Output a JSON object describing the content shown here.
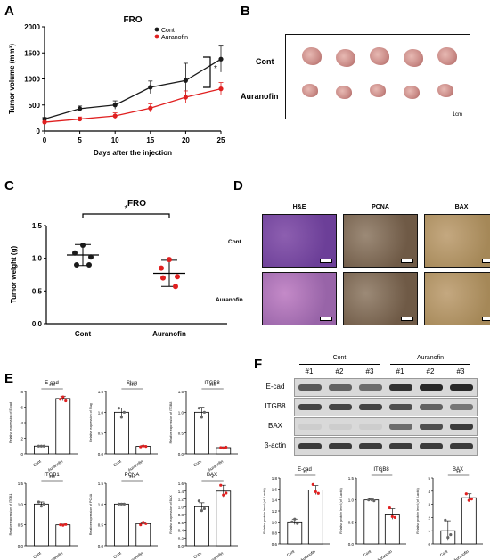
{
  "panels": [
    "A",
    "B",
    "C",
    "D",
    "E",
    "F"
  ],
  "panel_a": {
    "title": "FRO",
    "xlabel": "Days after the injection",
    "ylabel": "Tumor volume (mm³)",
    "sig": "*"
  },
  "panel_b": {
    "rows": [
      "Cont",
      "Auranofin"
    ],
    "scale": "1cm"
  },
  "panel_c": {
    "title": "FRO",
    "ylabel": "Tumor weight (g)",
    "sig": "*"
  },
  "panel_d": {
    "cols": [
      "H&E",
      "PCNA",
      "BAX"
    ],
    "rows": [
      "Cont",
      "Auranofin"
    ]
  },
  "panel_f": {
    "groups": [
      "Cont",
      "Auranofin"
    ],
    "lanes": [
      "#1",
      "#2",
      "#3",
      "#1",
      "#2",
      "#3"
    ],
    "bands": [
      "E-cad",
      "ITGB8",
      "BAX",
      "β-actin"
    ],
    "band_intensity": {
      "E-cad": [
        0.65,
        0.6,
        0.55,
        0.85,
        0.9,
        0.9
      ],
      "ITGB8": [
        0.75,
        0.75,
        0.75,
        0.7,
        0.6,
        0.5
      ],
      "BAX": [
        0.05,
        0.05,
        0.05,
        0.55,
        0.7,
        0.8
      ],
      "β-actin": [
        0.8,
        0.8,
        0.8,
        0.8,
        0.8,
        0.8
      ]
    }
  },
  "colors": {
    "cont": "#1a1a1a",
    "auranofin": "#e02020"
  },
  "chart_data": [
    {
      "id": "A",
      "type": "line",
      "title": "FRO",
      "xlabel": "Days after the injection",
      "ylabel": "Tumor volume (mm³)",
      "x": [
        0,
        5,
        10,
        15,
        20,
        25
      ],
      "xlim": [
        0,
        25
      ],
      "ylim": [
        0,
        2000
      ],
      "xticks": [
        0,
        5,
        10,
        15,
        20,
        25
      ],
      "yticks": [
        0,
        500,
        1000,
        1500,
        2000
      ],
      "series": [
        {
          "name": "Cont",
          "values": [
            230,
            430,
            500,
            840,
            970,
            1380
          ],
          "err": [
            30,
            50,
            80,
            120,
            330,
            250
          ]
        },
        {
          "name": "Auranofin",
          "values": [
            170,
            230,
            290,
            440,
            650,
            810
          ],
          "err": [
            20,
            40,
            60,
            80,
            120,
            120
          ]
        }
      ],
      "legend": "top-left"
    },
    {
      "id": "C",
      "type": "scatter",
      "title": "FRO",
      "ylabel": "Tumor weight (g)",
      "categories": [
        "Cont",
        "Auranofin"
      ],
      "ylim": [
        0,
        1.5
      ],
      "yticks": [
        0.0,
        0.5,
        1.0,
        1.5
      ],
      "points": [
        [
          1.2,
          1.08,
          1.02,
          0.9,
          0.9
        ],
        [
          0.98,
          0.85,
          0.72,
          0.7,
          0.57
        ]
      ],
      "mean": [
        1.05,
        0.77
      ],
      "sd": [
        0.16,
        0.2
      ],
      "sig": "*"
    },
    {
      "id": "E1",
      "type": "bar",
      "title": "E-cad",
      "ylabel": "Relative expression of E-cad",
      "categories": [
        "Cont",
        "Auranofin"
      ],
      "values": [
        1.0,
        7.1
      ],
      "err": [
        0,
        0.3
      ],
      "ylim": [
        0,
        8
      ],
      "yticks": [
        0,
        2,
        4,
        6,
        8
      ],
      "sig": "***",
      "points": [
        [
          1.0,
          1.0,
          1.0
        ],
        [
          7.0,
          7.3,
          6.8
        ]
      ]
    },
    {
      "id": "E2",
      "type": "bar",
      "title": "Slug",
      "ylabel": "Relative expression of Slug",
      "categories": [
        "Cont",
        "Auranofin"
      ],
      "values": [
        1.0,
        0.18
      ],
      "err": [
        0.1,
        0.02
      ],
      "ylim": [
        0,
        1.5
      ],
      "yticks": [
        0.0,
        0.5,
        1.0,
        1.5
      ],
      "sig": "***",
      "points": [
        [
          1.1,
          0.88,
          1.0
        ],
        [
          0.17,
          0.19,
          0.18
        ]
      ]
    },
    {
      "id": "E3",
      "type": "bar",
      "title": "ITGB8",
      "ylabel": "Relative expression of ITGB8",
      "categories": [
        "Cont",
        "Auranofin"
      ],
      "values": [
        1.0,
        0.15
      ],
      "err": [
        0.12,
        0.02
      ],
      "ylim": [
        0,
        1.5
      ],
      "yticks": [
        0.0,
        0.5,
        1.0,
        1.5
      ],
      "sig": "***",
      "points": [
        [
          1.1,
          0.88,
          1.0
        ],
        [
          0.15,
          0.14,
          0.16
        ]
      ]
    },
    {
      "id": "E4",
      "type": "bar",
      "title": "ITGB1",
      "ylabel": "Relative expression of ITGB1",
      "categories": [
        "Cont",
        "Auranofin"
      ],
      "values": [
        1.0,
        0.5
      ],
      "err": [
        0.05,
        0.02
      ],
      "ylim": [
        0,
        1.5
      ],
      "yticks": [
        0.0,
        0.5,
        1.0,
        1.5
      ],
      "sig": "***",
      "points": [
        [
          1.05,
          0.95,
          1.0
        ],
        [
          0.5,
          0.49,
          0.51
        ]
      ]
    },
    {
      "id": "E5",
      "type": "bar",
      "title": "PCNA",
      "ylabel": "Relative expression of PCNA",
      "categories": [
        "Cont",
        "Auranofin"
      ],
      "values": [
        1.0,
        0.53
      ],
      "err": [
        0.02,
        0.04
      ],
      "ylim": [
        0,
        1.5
      ],
      "yticks": [
        0.0,
        0.5,
        1.0,
        1.5
      ],
      "sig": "***",
      "points": [
        [
          1.0,
          1.0,
          1.0
        ],
        [
          0.5,
          0.56,
          0.53
        ]
      ]
    },
    {
      "id": "E6",
      "type": "bar",
      "title": "BAX",
      "ylabel": "Relative expression of BAX",
      "categories": [
        "Cont",
        "Auranofin"
      ],
      "values": [
        1.0,
        1.4
      ],
      "err": [
        0.1,
        0.15
      ],
      "ylim": [
        0,
        1.6
      ],
      "yticks": [
        0.0,
        0.2,
        0.4,
        0.6,
        0.8,
        1.0,
        1.2,
        1.4,
        1.6
      ],
      "sig": "*",
      "points": [
        [
          1.15,
          0.9,
          0.95
        ],
        [
          1.55,
          1.3,
          1.35
        ]
      ]
    },
    {
      "id": "F1",
      "type": "bar",
      "title": "E-cad",
      "ylabel": "Relative protein level (of β-actin)",
      "categories": [
        "Cont",
        "Auranofin"
      ],
      "values": [
        1.0,
        1.58
      ],
      "err": [
        0.05,
        0.08
      ],
      "ylim": [
        0.6,
        1.8
      ],
      "yticks": [
        0.6,
        0.8,
        1.0,
        1.2,
        1.4,
        1.6,
        1.8
      ],
      "sig": "**",
      "points": [
        [
          1.0,
          1.05,
          0.97
        ],
        [
          1.68,
          1.55,
          1.52
        ]
      ]
    },
    {
      "id": "F2",
      "type": "bar",
      "title": "ITGB8",
      "ylabel": "Relative protein level (of β-actin)",
      "categories": [
        "Cont",
        "Auranofin"
      ],
      "values": [
        1.0,
        0.68
      ],
      "err": [
        0.03,
        0.12
      ],
      "ylim": [
        0,
        1.5
      ],
      "yticks": [
        0.0,
        0.5,
        1.0,
        1.5
      ],
      "sig": "*",
      "points": [
        [
          1.0,
          1.02,
          0.98
        ],
        [
          0.82,
          0.62,
          0.6
        ]
      ]
    },
    {
      "id": "F3",
      "type": "bar",
      "title": "BAX",
      "ylabel": "Relative protein level (of β-actin)",
      "categories": [
        "Cont",
        "Auranofin"
      ],
      "values": [
        1.0,
        3.5
      ],
      "err": [
        0.75,
        0.3
      ],
      "ylim": [
        0,
        5
      ],
      "yticks": [
        0,
        1,
        2,
        3,
        4,
        5
      ],
      "sig": "**",
      "points": [
        [
          1.8,
          0.5,
          0.7
        ],
        [
          3.8,
          3.3,
          3.4
        ]
      ]
    }
  ]
}
